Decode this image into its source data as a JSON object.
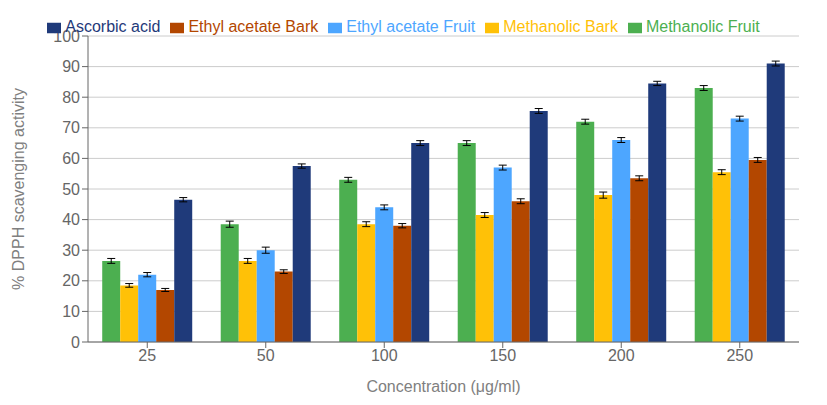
{
  "chart_data": {
    "type": "bar",
    "xlabel": "Concentration (μg/ml)",
    "ylabel": "% DPPH scavenging activity",
    "categories": [
      "25",
      "50",
      "100",
      "150",
      "200",
      "250"
    ],
    "series": [
      {
        "name": "Methanolic Fruit",
        "color": "#4caf50",
        "values": [
          26.5,
          38.5,
          53.0,
          65.0,
          72.0,
          83.0
        ],
        "errors": [
          0.8,
          1.0,
          0.8,
          0.8,
          0.8,
          0.8
        ]
      },
      {
        "name": "Methanolic Bark",
        "color": "#ffc107",
        "values": [
          18.5,
          26.5,
          38.5,
          41.5,
          48.0,
          55.5
        ],
        "errors": [
          0.6,
          0.8,
          0.8,
          0.8,
          1.0,
          0.8
        ]
      },
      {
        "name": "Ethyl acetate Fruit",
        "color": "#4da6ff",
        "values": [
          22.0,
          30.0,
          44.0,
          57.0,
          66.0,
          73.0
        ],
        "errors": [
          0.7,
          1.0,
          0.8,
          0.8,
          0.8,
          0.8
        ]
      },
      {
        "name": "Ethyl acetate Bark",
        "color": "#b34700",
        "values": [
          17.0,
          23.0,
          38.0,
          46.0,
          53.5,
          59.5
        ],
        "errors": [
          0.5,
          0.6,
          0.7,
          0.8,
          0.8,
          0.8
        ]
      },
      {
        "name": "Ascorbic acid",
        "color": "#1f3a7a",
        "values": [
          46.5,
          57.5,
          65.0,
          75.5,
          84.5,
          91.0
        ],
        "errors": [
          0.7,
          0.7,
          0.8,
          0.8,
          0.7,
          0.8
        ]
      }
    ],
    "ylim": [
      0,
      100
    ],
    "yticks": [
      0,
      10,
      20,
      30,
      40,
      50,
      60,
      70,
      80,
      90,
      100
    ],
    "grid": true,
    "legend": "top"
  }
}
